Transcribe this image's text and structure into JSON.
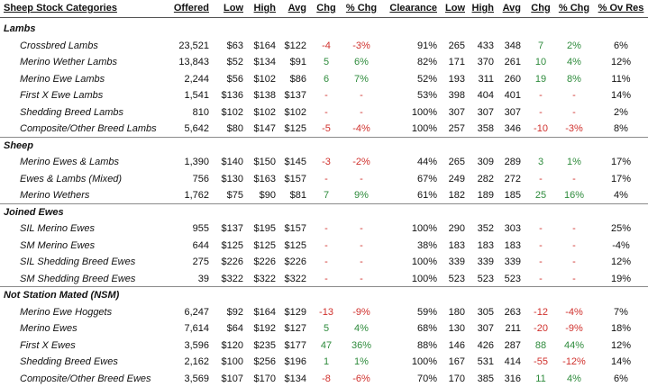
{
  "headers": [
    "Sheep Stock Categories",
    "Offered",
    "Low",
    "High",
    "Avg",
    "Chg",
    "% Chg",
    "Clearance",
    "Low",
    "High",
    "Avg",
    "Chg",
    "% Chg",
    "% Ov Res"
  ],
  "sections": [
    {
      "name": "Lambs",
      "rows": [
        [
          "Crossbred Lambs",
          "23,521",
          "$63",
          "$164",
          "$122",
          "-4",
          "-3%",
          "91%",
          "265",
          "433",
          "348",
          "7",
          "2%",
          "6%"
        ],
        [
          "Merino Wether Lambs",
          "13,843",
          "$52",
          "$134",
          "$91",
          "5",
          "6%",
          "82%",
          "171",
          "370",
          "261",
          "10",
          "4%",
          "12%"
        ],
        [
          "Merino Ewe Lambs",
          "2,244",
          "$56",
          "$102",
          "$86",
          "6",
          "7%",
          "52%",
          "193",
          "311",
          "260",
          "19",
          "8%",
          "11%"
        ],
        [
          "First X Ewe Lambs",
          "1,541",
          "$136",
          "$138",
          "$137",
          "-",
          "-",
          "53%",
          "398",
          "404",
          "401",
          "-",
          "-",
          "14%"
        ],
        [
          "Shedding Breed Lambs",
          "810",
          "$102",
          "$102",
          "$102",
          "-",
          "-",
          "100%",
          "307",
          "307",
          "307",
          "-",
          "-",
          "2%"
        ],
        [
          "Composite/Other Breed Lambs",
          "5,642",
          "$80",
          "$147",
          "$125",
          "-5",
          "-4%",
          "100%",
          "257",
          "358",
          "346",
          "-10",
          "-3%",
          "8%"
        ]
      ]
    },
    {
      "name": "Sheep",
      "rows": [
        [
          "Merino Ewes & Lambs",
          "1,390",
          "$140",
          "$150",
          "$145",
          "-3",
          "-2%",
          "44%",
          "265",
          "309",
          "289",
          "3",
          "1%",
          "17%"
        ],
        [
          "Ewes & Lambs (Mixed)",
          "756",
          "$130",
          "$163",
          "$157",
          "-",
          "-",
          "67%",
          "249",
          "282",
          "272",
          "-",
          "-",
          "17%"
        ],
        [
          "Merino Wethers",
          "1,762",
          "$75",
          "$90",
          "$81",
          "7",
          "9%",
          "61%",
          "182",
          "189",
          "185",
          "25",
          "16%",
          "4%"
        ]
      ]
    },
    {
      "name": "Joined Ewes",
      "rows": [
        [
          "SIL Merino Ewes",
          "955",
          "$137",
          "$195",
          "$157",
          "-",
          "-",
          "100%",
          "290",
          "352",
          "303",
          "-",
          "-",
          "25%"
        ],
        [
          "SM Merino Ewes",
          "644",
          "$125",
          "$125",
          "$125",
          "-",
          "-",
          "38%",
          "183",
          "183",
          "183",
          "-",
          "-",
          "-4%"
        ],
        [
          "SIL Shedding Breed Ewes",
          "275",
          "$226",
          "$226",
          "$226",
          "-",
          "-",
          "100%",
          "339",
          "339",
          "339",
          "-",
          "-",
          "12%"
        ],
        [
          "SM Shedding Breed Ewes",
          "39",
          "$322",
          "$322",
          "$322",
          "-",
          "-",
          "100%",
          "523",
          "523",
          "523",
          "-",
          "-",
          "19%"
        ]
      ]
    },
    {
      "name": "Not Station Mated (NSM)",
      "rows": [
        [
          "Merino Ewe Hoggets",
          "6,247",
          "$92",
          "$164",
          "$129",
          "-13",
          "-9%",
          "59%",
          "180",
          "305",
          "263",
          "-12",
          "-4%",
          "7%"
        ],
        [
          "Merino Ewes",
          "7,614",
          "$64",
          "$192",
          "$127",
          "5",
          "4%",
          "68%",
          "130",
          "307",
          "211",
          "-20",
          "-9%",
          "18%"
        ],
        [
          "First X Ewes",
          "3,596",
          "$120",
          "$235",
          "$177",
          "47",
          "36%",
          "88%",
          "146",
          "426",
          "287",
          "88",
          "44%",
          "12%"
        ],
        [
          "Shedding Breed Ewes",
          "2,162",
          "$100",
          "$256",
          "$196",
          "1",
          "1%",
          "100%",
          "167",
          "531",
          "414",
          "-55",
          "-12%",
          "14%"
        ],
        [
          "Composite/Other Breed Ewes",
          "3,569",
          "$107",
          "$170",
          "$134",
          "-8",
          "-6%",
          "70%",
          "170",
          "385",
          "316",
          "11",
          "4%",
          "6%"
        ]
      ]
    }
  ],
  "colors": {
    "negative": "#d0312d",
    "positive": "#2e8b3c",
    "dash": "#d0312d"
  }
}
